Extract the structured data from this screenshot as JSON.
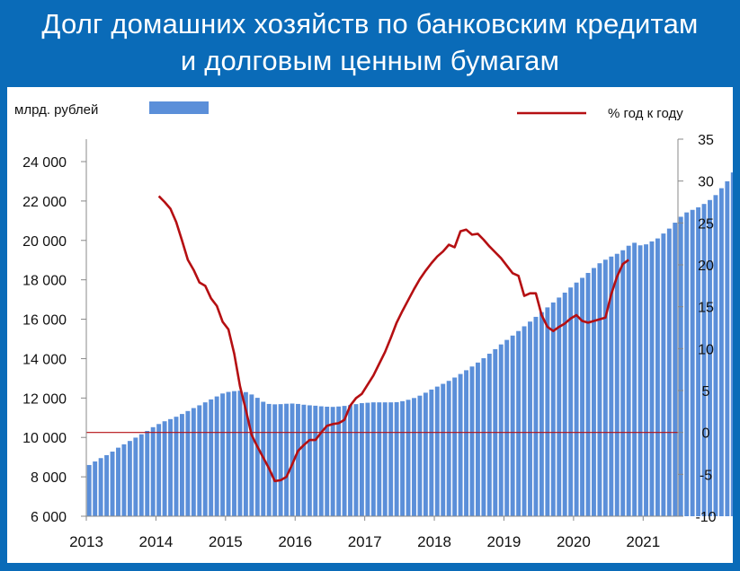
{
  "title": {
    "line1": "Долг домашних хозяйств по банковским кредитам",
    "line2": "и долговым ценным бумагам"
  },
  "colors": {
    "background": "#0a6bb8",
    "bars": "#5b8fd9",
    "line": "#b50f12",
    "zero_line": "#b50f12"
  },
  "legend": {
    "bars_label": "млрд. рублей",
    "line_label": "%  год к году"
  },
  "chart_data": {
    "type": "bar",
    "grid": false,
    "legend_placement": "top",
    "x_tick_labels": [
      "2013",
      "2014",
      "2015",
      "2016",
      "2017",
      "2018",
      "2019",
      "2020",
      "2021"
    ],
    "left_axis": {
      "unit": "млрд. рублей",
      "ylim": [
        6000,
        24000
      ],
      "tick_labels": [
        "6 000",
        "8 000",
        "10 000",
        "12 000",
        "14 000",
        "16 000",
        "18 000",
        "20 000",
        "22 000",
        "24 000"
      ],
      "tick_values": [
        6000,
        8000,
        10000,
        12000,
        14000,
        16000,
        18000,
        20000,
        22000,
        24000
      ]
    },
    "right_axis": {
      "unit": "%  год к году",
      "ylim": [
        -10,
        35
      ],
      "tick_labels": [
        "-10",
        "-5",
        "0",
        "5",
        "10",
        "15",
        "20",
        "25",
        "30",
        "35"
      ],
      "tick_values": [
        -10,
        -5,
        0,
        5,
        10,
        15,
        20,
        25,
        30,
        35
      ]
    },
    "series": [
      {
        "name": "млрд. рублей",
        "kind": "bar",
        "axis": "left",
        "start": "2013-01",
        "frequency": "monthly",
        "values": [
          8600,
          8780,
          8950,
          9100,
          9280,
          9480,
          9650,
          9820,
          9990,
          10160,
          10330,
          10520,
          10680,
          10820,
          10930,
          11050,
          11190,
          11340,
          11490,
          11630,
          11780,
          11930,
          12080,
          12230,
          12310,
          12350,
          12370,
          12300,
          12180,
          12010,
          11810,
          11700,
          11680,
          11690,
          11710,
          11720,
          11700,
          11660,
          11630,
          11610,
          11580,
          11560,
          11550,
          11570,
          11600,
          11640,
          11690,
          11740,
          11760,
          11780,
          11780,
          11780,
          11780,
          11790,
          11840,
          11910,
          12000,
          12120,
          12270,
          12430,
          12580,
          12720,
          12870,
          13040,
          13220,
          13410,
          13600,
          13800,
          14020,
          14250,
          14480,
          14720,
          14950,
          15170,
          15400,
          15640,
          15880,
          16120,
          16360,
          16600,
          16850,
          17100,
          17350,
          17610,
          17860,
          18100,
          18350,
          18600,
          18840,
          19020,
          19180,
          19320,
          19500,
          19730,
          19880,
          19750,
          19800,
          19950,
          20100,
          20350,
          20600,
          20900,
          21200,
          21420,
          21550,
          21680,
          21850,
          22050,
          22300,
          22650,
          23000,
          23450,
          23950,
          24400
        ]
      },
      {
        "name": "%  год к году",
        "kind": "line",
        "axis": "right",
        "start": "2014-01",
        "frequency": "monthly",
        "values": [
          28.2,
          27.5,
          26.7,
          25.1,
          22.9,
          20.6,
          19.4,
          17.9,
          17.5,
          16.0,
          15.1,
          13.2,
          12.3,
          9.4,
          5.5,
          2.7,
          -0.3,
          -1.7,
          -3.0,
          -4.3,
          -5.8,
          -5.7,
          -5.3,
          -3.8,
          -2.2,
          -1.5,
          -0.9,
          -0.9,
          0.0,
          0.8,
          1.0,
          1.1,
          1.5,
          3.2,
          4.1,
          4.6,
          5.7,
          6.8,
          8.2,
          9.6,
          11.3,
          13.1,
          14.5,
          15.8,
          17.1,
          18.3,
          19.3,
          20.2,
          21.0,
          21.6,
          22.4,
          22.1,
          24.0,
          24.2,
          23.6,
          23.7,
          23.0,
          22.2,
          21.5,
          20.8,
          19.9,
          19.0,
          18.7,
          16.3,
          16.6,
          16.6,
          14.0,
          12.6,
          12.1,
          12.6,
          13.0,
          13.6,
          14.0,
          13.3,
          13.1,
          13.3,
          13.5,
          13.7,
          16.5,
          18.6,
          20.1,
          20.6
        ]
      }
    ],
    "reference_line": {
      "axis": "right",
      "value": 0
    }
  }
}
